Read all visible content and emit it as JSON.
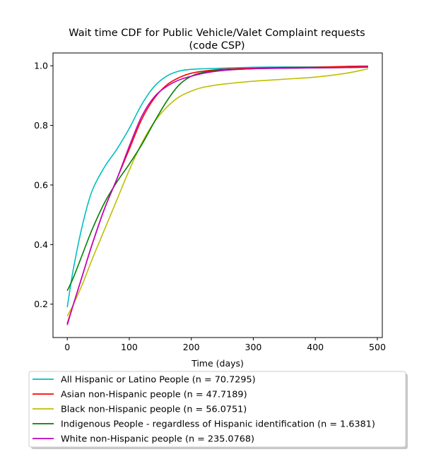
{
  "chart_data": {
    "type": "line",
    "title": "Wait time CDF for Public Vehicle/Valet Complaint  requests",
    "subtitle": "(code CSP)",
    "xlabel": "Time (days)",
    "ylabel": "",
    "xlim": [
      -23,
      508
    ],
    "ylim": [
      0.088,
      1.043
    ],
    "xticks": [
      0,
      100,
      200,
      300,
      400,
      500
    ],
    "yticks": [
      0.2,
      0.4,
      0.6,
      0.8,
      1.0
    ],
    "xtick_labels": [
      "0",
      "100",
      "200",
      "300",
      "400",
      "500"
    ],
    "ytick_labels": [
      "0.2",
      "0.4",
      "0.6",
      "0.8",
      "1.0"
    ],
    "grid": false,
    "legend_position": "below",
    "series": [
      {
        "name": "All Hispanic or Latino People (n = 70.7295)",
        "color": "#00bfbf",
        "x": [
          0,
          10,
          25,
          40,
          60,
          80,
          100,
          120,
          140,
          160,
          180,
          200,
          220,
          250,
          300,
          350,
          400,
          450,
          485
        ],
        "y": [
          0.19,
          0.32,
          0.47,
          0.58,
          0.66,
          0.72,
          0.79,
          0.87,
          0.93,
          0.965,
          0.982,
          0.988,
          0.99,
          0.992,
          0.995,
          0.996,
          0.996,
          0.997,
          0.998
        ]
      },
      {
        "name": "Asian non-Hispanic people (n = 47.7189)",
        "color": "#ff0000",
        "x": [
          0,
          10,
          25,
          40,
          60,
          80,
          100,
          120,
          140,
          160,
          180,
          200,
          220,
          250,
          300,
          350,
          400,
          450,
          485
        ],
        "y": [
          0.135,
          0.2,
          0.3,
          0.4,
          0.52,
          0.62,
          0.72,
          0.82,
          0.89,
          0.935,
          0.96,
          0.975,
          0.982,
          0.988,
          0.992,
          0.994,
          0.995,
          0.998,
          0.999
        ]
      },
      {
        "name": "Black non-Hispanic people (n = 56.0751)",
        "color": "#bfbf00",
        "x": [
          0,
          10,
          25,
          40,
          60,
          80,
          100,
          120,
          140,
          160,
          180,
          200,
          220,
          250,
          300,
          350,
          400,
          450,
          485
        ],
        "y": [
          0.16,
          0.2,
          0.27,
          0.35,
          0.45,
          0.55,
          0.65,
          0.74,
          0.81,
          0.86,
          0.895,
          0.915,
          0.928,
          0.938,
          0.948,
          0.955,
          0.962,
          0.975,
          0.99
        ]
      },
      {
        "name": "Indigenous People - regardless of Hispanic identification (n = 1.6381)",
        "color": "#008000",
        "x": [
          0,
          10,
          25,
          40,
          60,
          80,
          100,
          120,
          140,
          160,
          180,
          200,
          220,
          250,
          300,
          350,
          400,
          450,
          485
        ],
        "y": [
          0.245,
          0.29,
          0.37,
          0.45,
          0.54,
          0.61,
          0.67,
          0.735,
          0.81,
          0.88,
          0.935,
          0.965,
          0.978,
          0.985,
          0.99,
          0.992,
          0.993,
          0.994,
          0.995
        ]
      },
      {
        "name": "White non-Hispanic people (n = 235.0768)",
        "color": "#bf00bf",
        "x": [
          0,
          10,
          25,
          40,
          60,
          80,
          100,
          120,
          140,
          160,
          180,
          200,
          220,
          250,
          300,
          350,
          400,
          450,
          485
        ],
        "y": [
          0.13,
          0.2,
          0.3,
          0.4,
          0.52,
          0.62,
          0.73,
          0.83,
          0.895,
          0.93,
          0.952,
          0.965,
          0.975,
          0.984,
          0.99,
          0.992,
          0.993,
          0.994,
          0.996
        ]
      }
    ]
  }
}
